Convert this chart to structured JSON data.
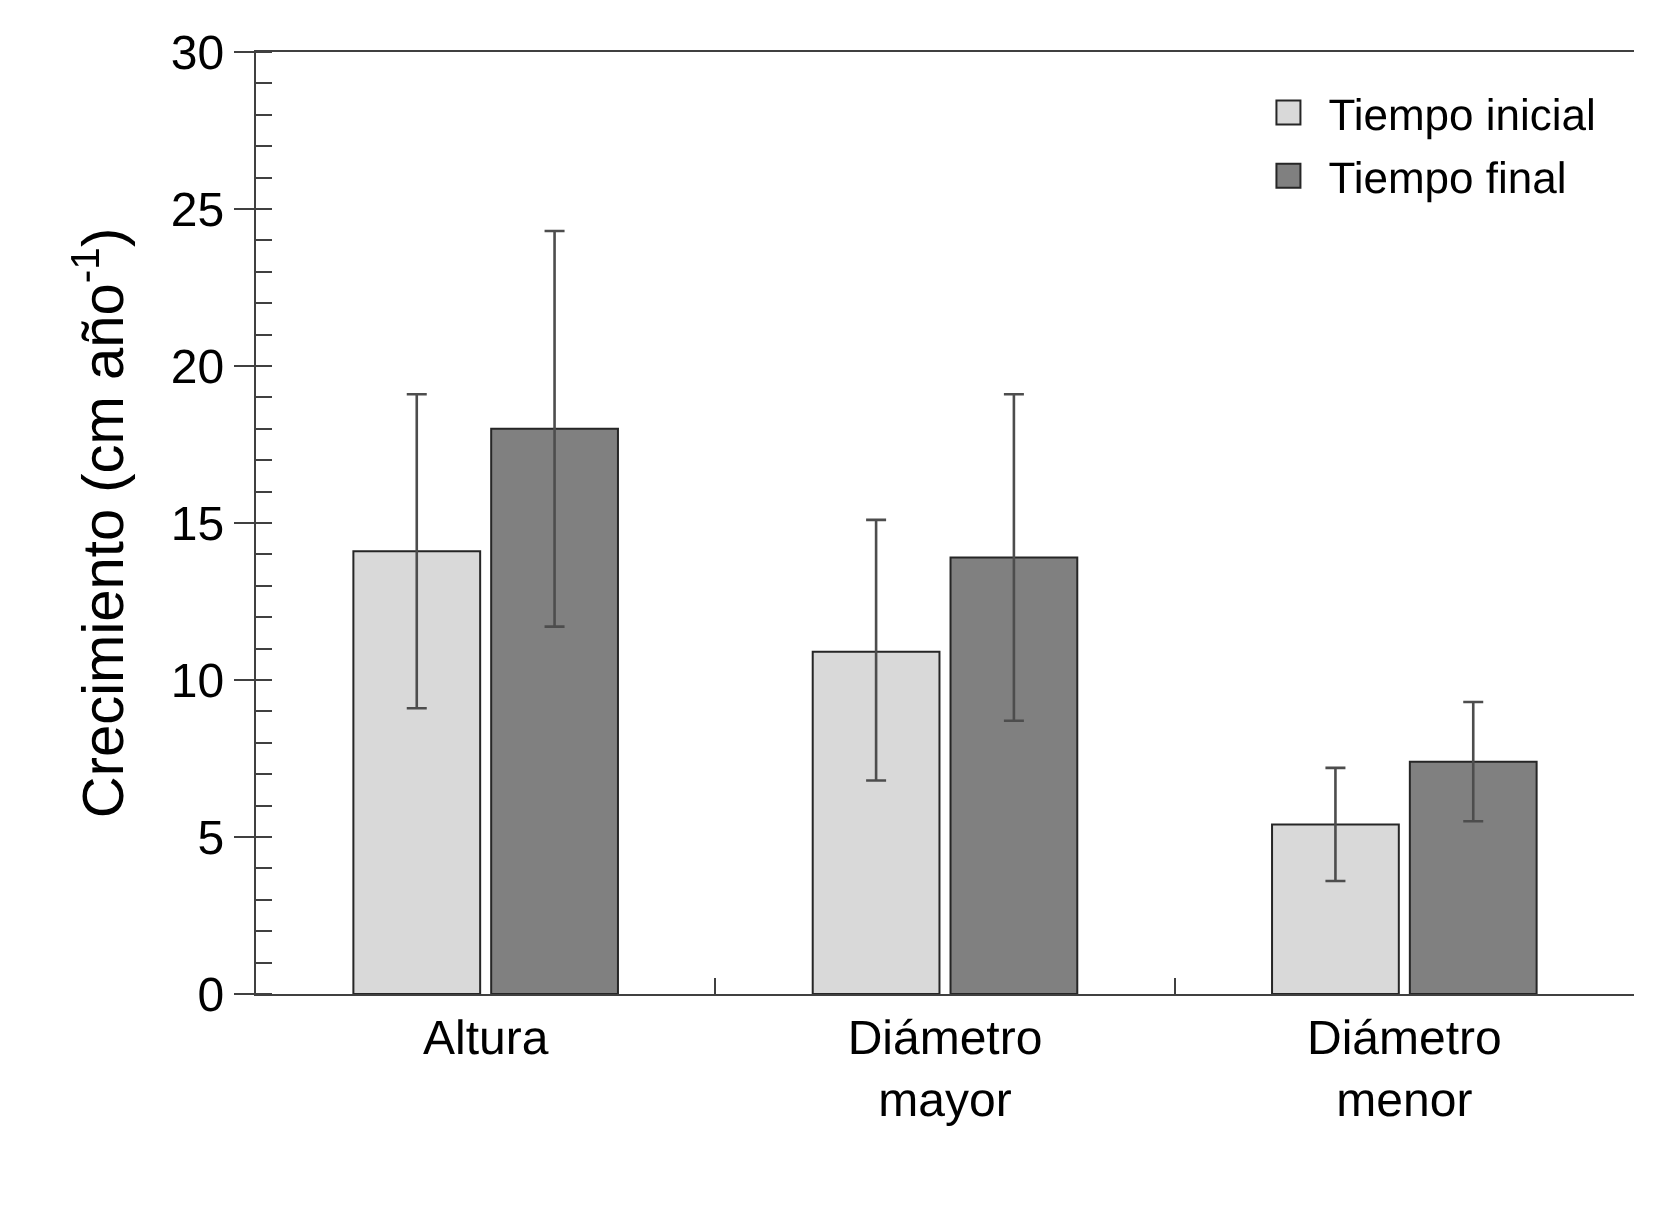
{
  "chart_data": {
    "type": "bar",
    "ylabel": "Crecimiento (cm año$^{-1}$)",
    "categories": [
      "Altura",
      "Diámetro mayor",
      "Diámetro menor"
    ],
    "series": [
      {
        "name": "Tiempo inicial",
        "color": "#d9d9d9",
        "values": [
          14.1,
          10.9,
          5.4
        ],
        "errors": [
          5.0,
          [
            6.8,
            15.1
          ],
          [
            3.6,
            7.2
          ]
        ]
      },
      {
        "name": "Tiempo final",
        "color": "#808080",
        "values": [
          18.0,
          13.9,
          7.4
        ],
        "errors": [
          [
            11.7,
            24.3
          ],
          [
            8.7,
            19.1
          ],
          [
            5.5,
            9.3
          ]
        ]
      }
    ],
    "ylim": [
      0,
      30
    ],
    "yticks": [
      0,
      5,
      10,
      15,
      20,
      25,
      30
    ],
    "grid": false,
    "legend": "top right"
  }
}
